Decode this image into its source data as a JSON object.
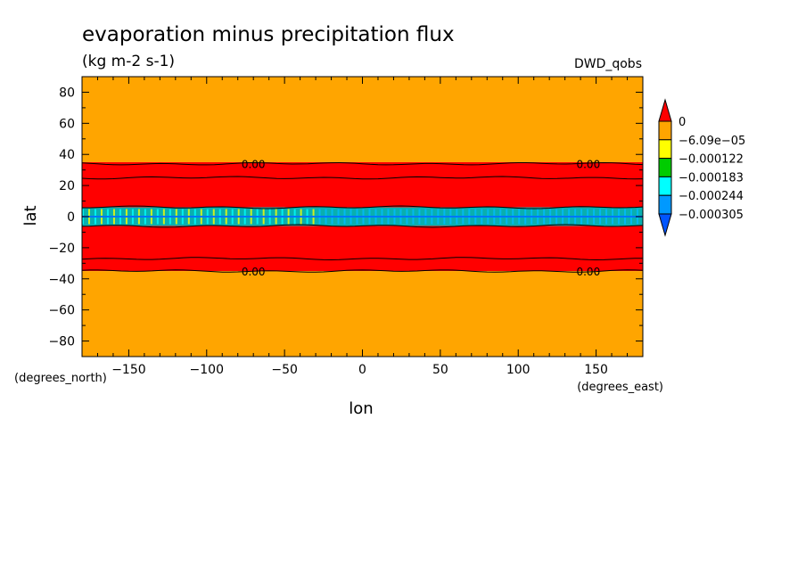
{
  "chart_data": {
    "type": "heatmap",
    "title": "evaporation minus precipitation flux",
    "subtitle": "(kg m-2 s-1)",
    "dataset_label": "DWD_qobs",
    "xlabel": "lon",
    "ylabel": "lat",
    "x_units": "(degrees_east)",
    "y_units": "(degrees_north)",
    "xlim": [
      -180,
      180
    ],
    "ylim": [
      -90,
      90
    ],
    "x_ticks": [
      -150,
      -100,
      -50,
      0,
      50,
      100,
      150
    ],
    "y_ticks": [
      80,
      60,
      40,
      20,
      0,
      -20,
      -40,
      -60,
      -80
    ],
    "grid": false,
    "legend_position": "right",
    "colorbar": {
      "levels": [
        "0",
        "-6.09e-05",
        "-0.000122",
        "-0.000183",
        "-0.000244",
        "-0.000305"
      ],
      "colors": [
        "#ff0000",
        "#ffa500",
        "#ffff00",
        "#00cc00",
        "#00ffff",
        "#0099ff",
        "#0055ff"
      ]
    },
    "bands": [
      {
        "lat_from": 35,
        "lat_to": 90,
        "color": "#ffa500"
      },
      {
        "lat_from": 6,
        "lat_to": 35,
        "color": "#ff0000"
      },
      {
        "lat_from": -6,
        "lat_to": 6,
        "color": "#00ffff"
      },
      {
        "lat_from": -35,
        "lat_to": -6,
        "color": "#ff0000"
      },
      {
        "lat_from": -90,
        "lat_to": -35,
        "color": "#ffa500"
      }
    ],
    "contours": [
      {
        "lat": 34,
        "label": "0.00"
      },
      {
        "lat": 25
      },
      {
        "lat": 6
      },
      {
        "lat": -6
      },
      {
        "lat": -27
      },
      {
        "lat": -35,
        "label": "0.00"
      }
    ],
    "contour_label_lons": [
      -70,
      145
    ]
  }
}
